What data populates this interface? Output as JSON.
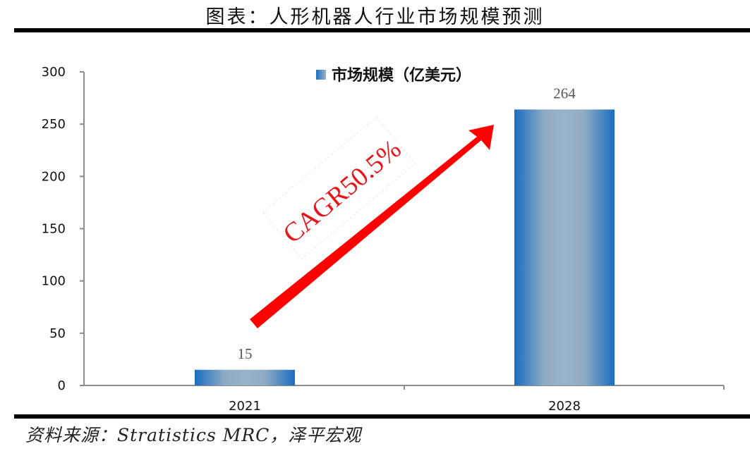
{
  "header": {
    "title": "图表：人形机器人行业市场规模预测"
  },
  "footer": {
    "source": "资料来源：Stratistics MRC，泽平宏观"
  },
  "annotation": {
    "cagr_label": "CAGR50.5%",
    "arrow_color": "#ff0000",
    "text_color": "#e8141b"
  },
  "colors": {
    "bar_edge": "#1a6ec0",
    "bar_center": "#98b3c6",
    "axis": "#8c8c8c",
    "rule": "#000000"
  },
  "chart_data": {
    "type": "bar",
    "title": "人形机器人行业市场规模预测",
    "categories": [
      "2021",
      "2028"
    ],
    "series": [
      {
        "name": "市场规模（亿美元）",
        "values": [
          15,
          264
        ]
      }
    ],
    "values": [
      15,
      264
    ],
    "data_labels": [
      "15",
      "264"
    ],
    "legend": [
      "市场规模（亿美元）"
    ],
    "legend_position": "top",
    "xlabel": "",
    "ylabel": "",
    "ylim": [
      0,
      300
    ],
    "yticks": [
      0,
      50,
      100,
      150,
      200,
      250,
      300
    ],
    "ytick_labels": [
      "0",
      "50",
      "100",
      "150",
      "200",
      "250",
      "300"
    ],
    "grid": false,
    "annotations": [
      {
        "text": "CAGR50.5%",
        "type": "arrow",
        "from": "2021",
        "to": "2028"
      }
    ]
  }
}
